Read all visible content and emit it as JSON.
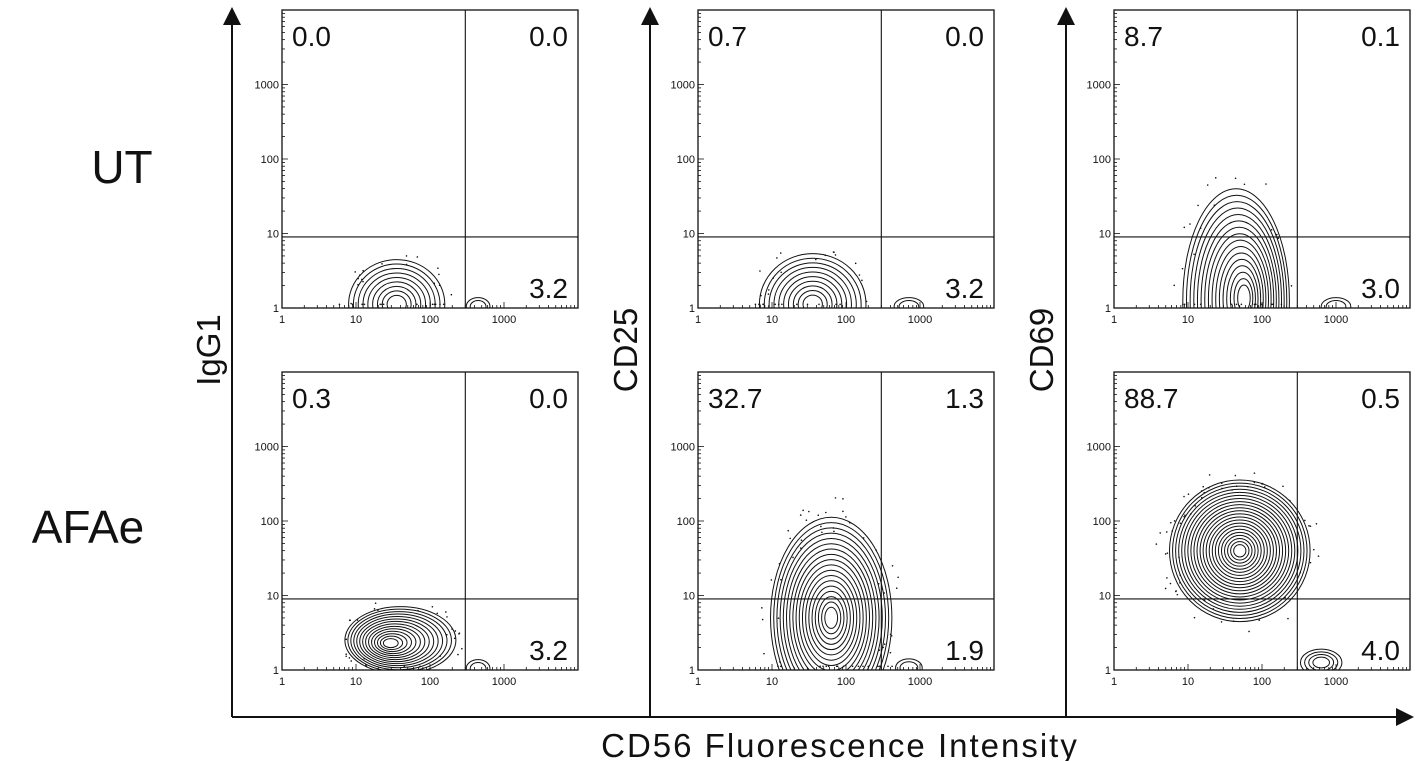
{
  "figure": {
    "x_axis_title": "CD56 Fluorescence Intensity",
    "row_labels": [
      "UT",
      "AFAe"
    ],
    "column_y_labels": [
      "IgG1",
      "CD25",
      "CD69"
    ]
  },
  "chart_data": {
    "type": "contour",
    "x_axis_scale": "log",
    "y_axis_scale": "log",
    "xlim": [
      1,
      10000
    ],
    "ylim": [
      1,
      10000
    ],
    "x_tick_labels": [
      "1",
      "10",
      "100",
      "1000"
    ],
    "y_tick_labels": [
      "1",
      "10",
      "100",
      "1000"
    ],
    "x_gate": 300,
    "y_gate": 9,
    "quadrant_order": [
      "upper-left",
      "upper-right",
      "lower-right"
    ],
    "panels": [
      {
        "row": "UT",
        "y_marker": "IgG1",
        "upper_left": "0.0",
        "upper_right": "0.0",
        "lower_right": "3.2"
      },
      {
        "row": "UT",
        "y_marker": "CD25",
        "upper_left": "0.7",
        "upper_right": "0.0",
        "lower_right": "3.2"
      },
      {
        "row": "UT",
        "y_marker": "CD69",
        "upper_left": "8.7",
        "upper_right": "0.1",
        "lower_right": "3.0"
      },
      {
        "row": "AFAe",
        "y_marker": "IgG1",
        "upper_left": "0.3",
        "upper_right": "0.0",
        "lower_right": "3.2"
      },
      {
        "row": "AFAe",
        "y_marker": "CD25",
        "upper_left": "32.7",
        "upper_right": "1.3",
        "lower_right": "1.9"
      },
      {
        "row": "AFAe",
        "y_marker": "CD69",
        "upper_left": "88.7",
        "upper_right": "0.5",
        "lower_right": "4.0"
      }
    ]
  }
}
